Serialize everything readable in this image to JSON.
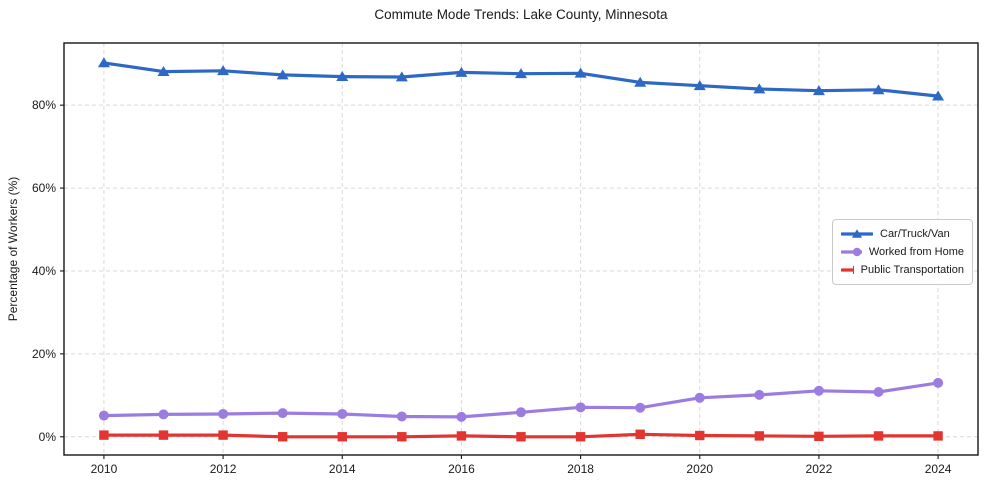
{
  "chart_data": {
    "type": "line",
    "title": "Commute Mode Trends: Lake County, Minnesota",
    "xlabel": "",
    "ylabel": "Percentage of Workers (%)",
    "x": [
      2010,
      2011,
      2012,
      2013,
      2014,
      2015,
      2016,
      2017,
      2018,
      2019,
      2020,
      2021,
      2022,
      2023,
      2024
    ],
    "series": [
      {
        "name": "Car/Truck/Van",
        "color": "#2e68c5",
        "marker": "triangle",
        "values": [
          90.2,
          88.1,
          88.3,
          87.3,
          86.9,
          86.8,
          87.9,
          87.6,
          87.7,
          85.5,
          84.7,
          83.9,
          83.5,
          83.7,
          82.2
        ]
      },
      {
        "name": "Worked from Home",
        "color": "#9d7ce0",
        "marker": "circle",
        "values": [
          5.1,
          5.4,
          5.5,
          5.7,
          5.5,
          4.9,
          4.8,
          5.9,
          7.1,
          7.0,
          9.4,
          10.1,
          11.1,
          10.8,
          13.0
        ]
      },
      {
        "name": "Public Transportation",
        "color": "#e23530",
        "marker": "square",
        "values": [
          0.4,
          0.4,
          0.4,
          0.0,
          0.0,
          0.0,
          0.2,
          0.0,
          0.0,
          0.6,
          0.3,
          0.2,
          0.1,
          0.2,
          0.2
        ]
      }
    ],
    "xticks": [
      2010,
      2012,
      2014,
      2016,
      2018,
      2020,
      2022,
      2024
    ],
    "yticks": [
      0,
      20,
      40,
      60,
      80
    ],
    "ytick_suffix": "%",
    "xlim": [
      2009.33,
      2024.67
    ],
    "ylim": [
      -4.4,
      95.0
    ],
    "grid": true,
    "legend_position": "right-middle"
  }
}
